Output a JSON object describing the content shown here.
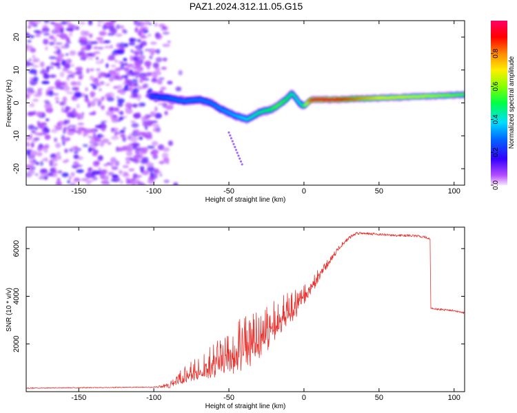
{
  "title": "PAZ1.2024.312.11.05.G15",
  "chart_data": [
    {
      "type": "heatmap",
      "xlabel": "Height of straight line (km)",
      "ylabel": "Frequency (Hz)",
      "xlim": [
        -185,
        107
      ],
      "ylim": [
        -25,
        25
      ],
      "xticks": [
        -150,
        -100,
        -50,
        0,
        50,
        100
      ],
      "xtick_labels": [
        "-150",
        "-100",
        "-50",
        "0",
        "50",
        "100"
      ],
      "yticks": [
        -20,
        -10,
        0,
        10,
        20
      ],
      "ytick_labels": [
        "-20",
        "-10",
        "0",
        "10",
        "20"
      ],
      "colorbar": {
        "label": "Normalized spectral amplitude",
        "range": [
          0,
          1
        ],
        "ticks": [
          0.0,
          0.2,
          0.4,
          0.6,
          0.8
        ],
        "tick_labels": [
          "0.0",
          "0.2",
          "0.4",
          "0.6",
          "0.8"
        ],
        "colormap": "rainbow (magenta→blue→cyan→green→yellow→red→pink)"
      },
      "noise_region_x": [
        -185,
        -90
      ],
      "ridge": {
        "x": [
          -100,
          -90,
          -80,
          -70,
          -62,
          -55,
          -45,
          -38,
          -30,
          -22,
          -18,
          -12,
          -8,
          -3,
          0,
          5,
          20,
          50,
          80,
          107
        ],
        "y": [
          2,
          1.5,
          0.5,
          1,
          0,
          -2,
          -4,
          -5,
          -3,
          -2,
          -1,
          1,
          3,
          0,
          -1,
          1,
          1,
          1.5,
          2,
          2.5
        ],
        "amplitude": [
          0.25,
          0.28,
          0.3,
          0.3,
          0.3,
          0.32,
          0.35,
          0.4,
          0.45,
          0.5,
          0.55,
          0.5,
          0.45,
          0.4,
          0.5,
          0.95,
          0.95,
          0.7,
          0.65,
          0.55
        ]
      }
    },
    {
      "type": "line",
      "xlabel": "Height of straight line (km)",
      "ylabel": "SNR (10 * v/v)",
      "xlim": [
        -185,
        107
      ],
      "ylim": [
        0,
        6900
      ],
      "xticks": [
        -150,
        -100,
        -50,
        0,
        50,
        100
      ],
      "xtick_labels": [
        "-150",
        "-100",
        "-50",
        "0",
        "50",
        "100"
      ],
      "yticks": [
        2000,
        4000,
        6000
      ],
      "ytick_labels": [
        "2000",
        "4000",
        "6000"
      ],
      "color": "#e8332f",
      "series": [
        {
          "x": [
            -185,
            -160,
            -140,
            -120,
            -100,
            -90,
            -85,
            -80,
            -75,
            -70,
            -65,
            -60,
            -55,
            -50,
            -45,
            -40,
            -35,
            -30,
            -25,
            -20,
            -15,
            -10,
            -5,
            0,
            5,
            10,
            15,
            20,
            25,
            30,
            35,
            40,
            50,
            60,
            70,
            80,
            84,
            84.5,
            90,
            100,
            107
          ],
          "values": [
            150,
            160,
            170,
            180,
            190,
            260,
            420,
            580,
            720,
            850,
            980,
            1100,
            1250,
            1400,
            1550,
            1700,
            1900,
            2100,
            2350,
            2650,
            2950,
            3250,
            3600,
            4000,
            4400,
            4850,
            5300,
            5750,
            6150,
            6450,
            6650,
            6650,
            6600,
            6550,
            6550,
            6500,
            6400,
            3500,
            3450,
            3400,
            3300
          ],
          "noise_amplitude": [
            40,
            40,
            40,
            40,
            40,
            200,
            350,
            450,
            550,
            650,
            800,
            950,
            1100,
            1250,
            1400,
            1450,
            1450,
            1350,
            1250,
            1150,
            1050,
            950,
            850,
            700,
            550,
            450,
            350,
            250,
            180,
            140,
            120,
            100,
            100,
            100,
            100,
            100,
            100,
            80,
            80,
            80,
            80
          ]
        }
      ]
    }
  ]
}
